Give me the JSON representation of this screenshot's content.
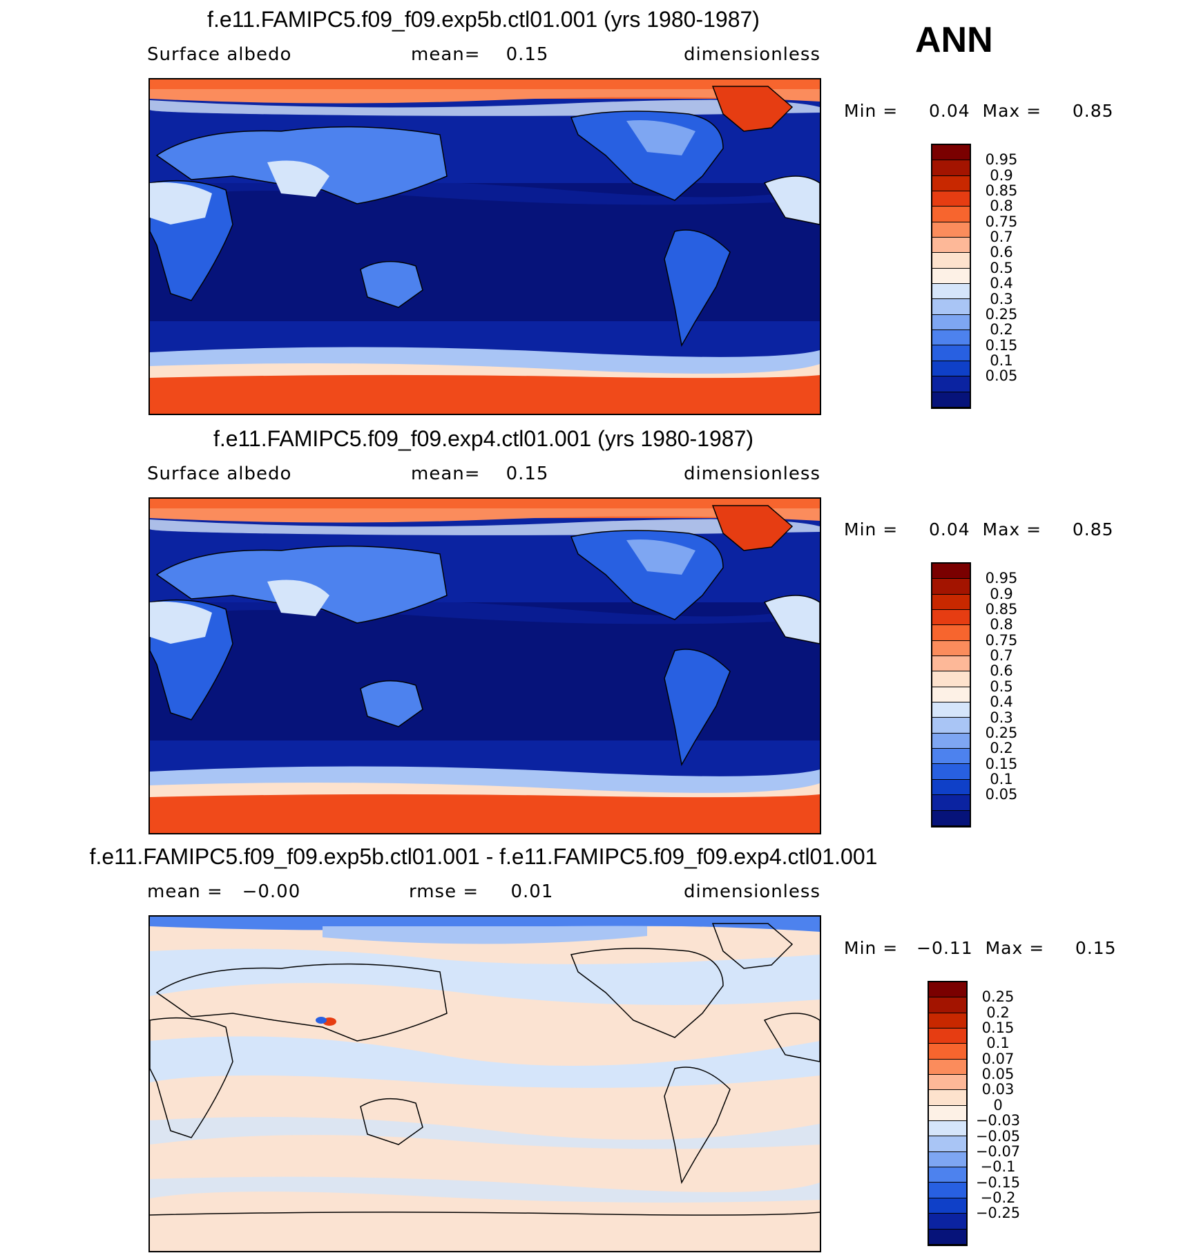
{
  "season": "ANN",
  "panels": [
    {
      "title": "f.e11.FAMIPC5.f09_f09.exp5b.ctl01.001 (yrs 1980-1987)",
      "left_label": "Surface albedo",
      "center_label": "mean=    0.15",
      "right_label": "dimensionless",
      "minmax": "Min =     0.04  Max =     0.85",
      "colorbar": {
        "labels": [
          "0.95",
          "0.9",
          "0.85",
          "0.8",
          "0.75",
          "0.7",
          "0.6",
          "0.5",
          "0.4",
          "0.3",
          "0.25",
          "0.2",
          "0.15",
          "0.1",
          "0.05"
        ],
        "colors": [
          "#7a0000",
          "#a31400",
          "#c82800",
          "#e63d12",
          "#f7652e",
          "#fb8c5c",
          "#fdb898",
          "#fde2cd",
          "#fdf1e6",
          "#d5e5fa",
          "#a9c5f5",
          "#7ea6f2",
          "#4d82ee",
          "#2860e1",
          "#0f40c8",
          "#0b23a1",
          "#06137a"
        ]
      }
    },
    {
      "title": "f.e11.FAMIPC5.f09_f09.exp4.ctl01.001 (yrs 1980-1987)",
      "left_label": "Surface albedo",
      "center_label": "mean=    0.15",
      "right_label": "dimensionless",
      "minmax": "Min =     0.04  Max =     0.85",
      "colorbar": {
        "labels": [
          "0.95",
          "0.9",
          "0.85",
          "0.8",
          "0.75",
          "0.7",
          "0.6",
          "0.5",
          "0.4",
          "0.3",
          "0.25",
          "0.2",
          "0.15",
          "0.1",
          "0.05"
        ],
        "colors": [
          "#7a0000",
          "#a31400",
          "#c82800",
          "#e63d12",
          "#f7652e",
          "#fb8c5c",
          "#fdb898",
          "#fde2cd",
          "#fdf1e6",
          "#d5e5fa",
          "#a9c5f5",
          "#7ea6f2",
          "#4d82ee",
          "#2860e1",
          "#0f40c8",
          "#0b23a1",
          "#06137a"
        ]
      }
    },
    {
      "title": "f.e11.FAMIPC5.f09_f09.exp5b.ctl01.001 - f.e11.FAMIPC5.f09_f09.exp4.ctl01.001",
      "left_label": "mean =   −0.00",
      "center_label": "rmse =     0.01",
      "right_label": "dimensionless",
      "minmax": "Min =   −0.11  Max =     0.15",
      "colorbar": {
        "labels": [
          "0.25",
          "0.2",
          "0.15",
          "0.1",
          "0.07",
          "0.05",
          "0.03",
          "0",
          "−0.03",
          "−0.05",
          "−0.07",
          "−0.1",
          "−0.15",
          "−0.2",
          "−0.25"
        ],
        "colors": [
          "#7a0000",
          "#a31400",
          "#c82800",
          "#e63d12",
          "#f7652e",
          "#fb8c5c",
          "#fdb898",
          "#fde2cd",
          "#fdf1e6",
          "#d5e5fa",
          "#a9c5f5",
          "#7ea6f2",
          "#4d82ee",
          "#2860e1",
          "#0f40c8",
          "#0b23a1",
          "#06137a"
        ]
      }
    }
  ]
}
